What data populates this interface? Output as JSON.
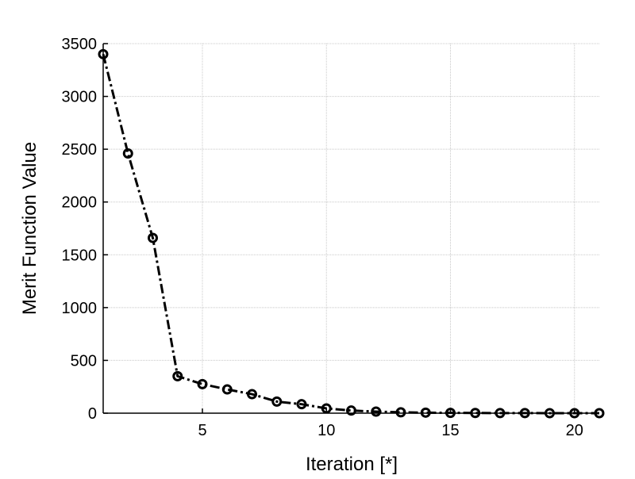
{
  "chart_data": {
    "type": "line",
    "title": "",
    "xlabel": "Iteration [*]",
    "ylabel": "Merit Function Value",
    "xlim": [
      1,
      21
    ],
    "ylim": [
      0,
      3500
    ],
    "xticks": [
      5,
      10,
      15,
      20
    ],
    "xtick_labels": [
      "5",
      "10",
      "15",
      "20"
    ],
    "yticks": [
      0,
      500,
      1000,
      1500,
      2000,
      2500,
      3000,
      3500
    ],
    "ytick_labels": [
      "0",
      "500",
      "1000",
      "1500",
      "2000",
      "2500",
      "3000",
      "3500"
    ],
    "grid": true,
    "legend": "none",
    "line_style": "dash-dot",
    "marker": "circle",
    "color": "#000000",
    "series": [
      {
        "x": [
          1,
          2,
          3,
          4,
          5,
          6,
          7,
          8,
          9,
          10,
          11,
          12,
          13,
          14,
          15,
          16,
          17,
          18,
          19,
          20,
          21
        ],
        "values": [
          3400,
          2460,
          1660,
          350,
          275,
          225,
          180,
          110,
          85,
          45,
          25,
          15,
          8,
          5,
          3,
          2,
          1,
          1,
          0,
          0,
          0
        ]
      }
    ]
  }
}
